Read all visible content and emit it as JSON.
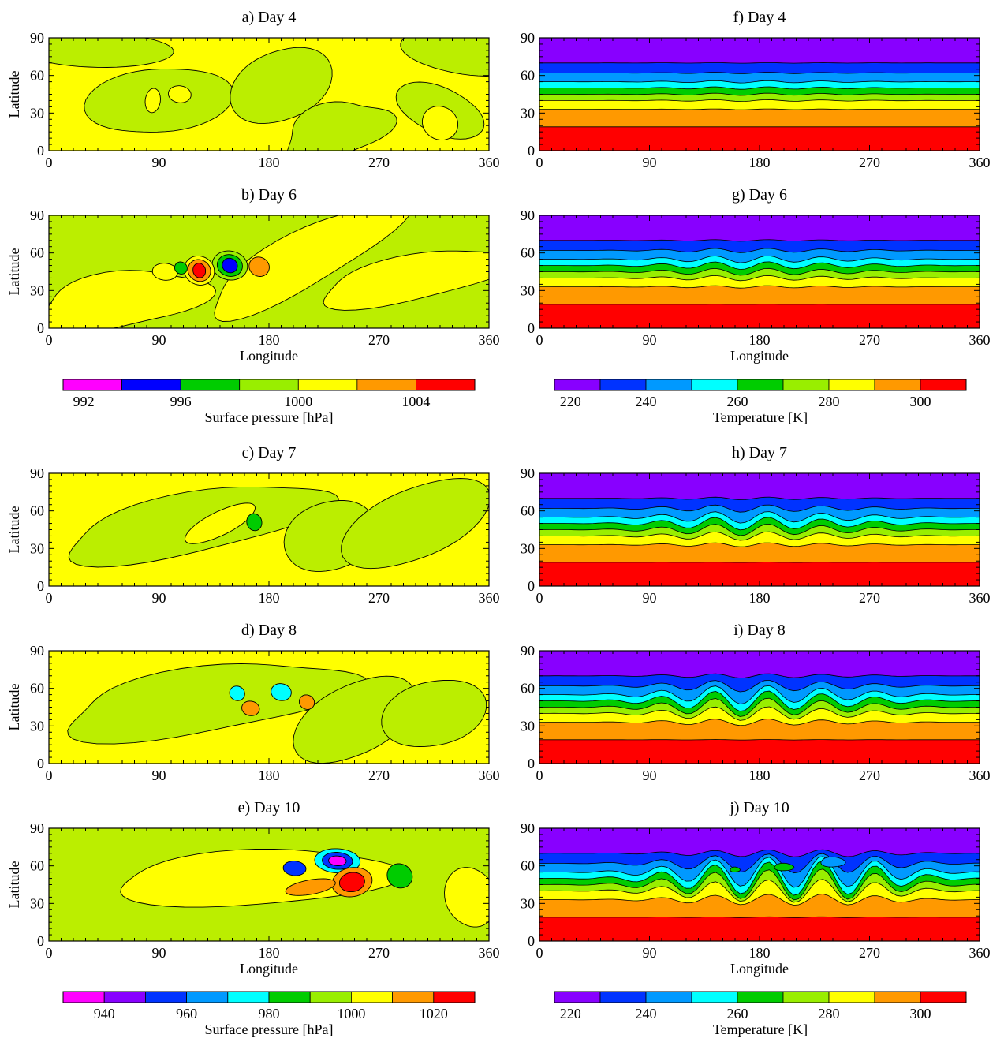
{
  "figure": {
    "panels": [
      {
        "id": "a",
        "title": "a) Day 4",
        "variable": "ps",
        "col": 0,
        "row": 0,
        "ylabel": "Latitude",
        "xlabel": ""
      },
      {
        "id": "b",
        "title": "b) Day 6",
        "variable": "ps",
        "col": 0,
        "row": 1,
        "ylabel": "Latitude",
        "xlabel": "Longitude"
      },
      {
        "id": "c",
        "title": "c) Day 7",
        "variable": "ps",
        "col": 0,
        "row": 2,
        "ylabel": "Latitude",
        "xlabel": ""
      },
      {
        "id": "d",
        "title": "d) Day 8",
        "variable": "ps",
        "col": 0,
        "row": 3,
        "ylabel": "Latitude",
        "xlabel": ""
      },
      {
        "id": "e",
        "title": "e) Day 10",
        "variable": "ps",
        "col": 0,
        "row": 4,
        "ylabel": "Latitude",
        "xlabel": "Longitude"
      },
      {
        "id": "f",
        "title": "f) Day 4",
        "variable": "t",
        "col": 1,
        "row": 0,
        "ylabel": "",
        "xlabel": ""
      },
      {
        "id": "g",
        "title": "g) Day 6",
        "variable": "t",
        "col": 1,
        "row": 1,
        "ylabel": "",
        "xlabel": "Longitude"
      },
      {
        "id": "h",
        "title": "h) Day 7",
        "variable": "t",
        "col": 1,
        "row": 2,
        "ylabel": "",
        "xlabel": ""
      },
      {
        "id": "i",
        "title": "i) Day 8",
        "variable": "t",
        "col": 1,
        "row": 3,
        "ylabel": "",
        "xlabel": ""
      },
      {
        "id": "j",
        "title": "j) Day 10",
        "variable": "t",
        "col": 1,
        "row": 4,
        "ylabel": "",
        "xlabel": "Longitude"
      }
    ],
    "colorbars": [
      {
        "id": "ps1",
        "label": "Surface pressure [hPa]",
        "colors": [
          "#ff00ff",
          "#0000ff",
          "#00cc00",
          "#99ee00",
          "#ffff00",
          "#ff9900",
          "#ff0000"
        ],
        "ticks": [
          "992",
          "996",
          "1000",
          "1004"
        ]
      },
      {
        "id": "t1",
        "label": "Temperature [K]",
        "colors": [
          "#8800ff",
          "#0033ff",
          "#0099ff",
          "#00ffff",
          "#00cc00",
          "#99ee00",
          "#ffff00",
          "#ff9900",
          "#ff0000"
        ],
        "ticks": [
          "220",
          "240",
          "260",
          "280",
          "300"
        ]
      },
      {
        "id": "ps2",
        "label": "Surface pressure [hPa]",
        "colors": [
          "#ff00ff",
          "#8800ff",
          "#0033ff",
          "#0099ff",
          "#00ffff",
          "#00cc00",
          "#99ee00",
          "#ffff00",
          "#ff9900",
          "#ff0000"
        ],
        "ticks": [
          "940",
          "960",
          "980",
          "1000",
          "1020"
        ]
      },
      {
        "id": "t2",
        "label": "Temperature [K]",
        "colors": [
          "#8800ff",
          "#0033ff",
          "#0099ff",
          "#00ffff",
          "#00cc00",
          "#99ee00",
          "#ffff00",
          "#ff9900",
          "#ff0000"
        ],
        "ticks": [
          "220",
          "240",
          "260",
          "280",
          "300"
        ]
      }
    ]
  },
  "chart_data": [
    {
      "type": "heatmap",
      "panel": "a",
      "title": "a) Day 4",
      "ylabel": "Latitude",
      "xlim": [
        0,
        360
      ],
      "ylim": [
        0,
        90
      ],
      "x_ticks": [
        0,
        90,
        180,
        270,
        360
      ],
      "y_ticks": [
        0,
        30,
        60,
        90
      ],
      "background_level": "1000",
      "centers": []
    },
    {
      "type": "heatmap",
      "panel": "b",
      "title": "b) Day 6",
      "xlabel": "Longitude",
      "ylabel": "Latitude",
      "xlim": [
        0,
        360
      ],
      "ylim": [
        0,
        90
      ],
      "x_ticks": [
        0,
        90,
        180,
        270,
        360
      ],
      "y_ticks": [
        0,
        30,
        60,
        90
      ],
      "centers": [
        {
          "lon": 148,
          "lat": 50,
          "color": "#0000ff"
        },
        {
          "lon": 123,
          "lat": 46,
          "color": "#ff0000"
        },
        {
          "lon": 172,
          "lat": 49,
          "color": "#ff9900"
        }
      ]
    },
    {
      "type": "heatmap",
      "panel": "c",
      "title": "c) Day 7",
      "ylabel": "Latitude",
      "xlim": [
        0,
        360
      ],
      "ylim": [
        0,
        90
      ],
      "x_ticks": [
        0,
        90,
        180,
        270,
        360
      ],
      "y_ticks": [
        0,
        30,
        60,
        90
      ],
      "centers": [
        {
          "lon": 168,
          "lat": 51,
          "color": "#00cc00"
        }
      ]
    },
    {
      "type": "heatmap",
      "panel": "d",
      "title": "d) Day 8",
      "ylabel": "Latitude",
      "xlim": [
        0,
        360
      ],
      "ylim": [
        0,
        90
      ],
      "x_ticks": [
        0,
        90,
        180,
        270,
        360
      ],
      "y_ticks": [
        0,
        30,
        60,
        90
      ],
      "centers": [
        {
          "lon": 154,
          "lat": 56,
          "color": "#00ffff"
        },
        {
          "lon": 190,
          "lat": 57,
          "color": "#00ffff"
        },
        {
          "lon": 165,
          "lat": 44,
          "color": "#ff9900"
        },
        {
          "lon": 211,
          "lat": 49,
          "color": "#ff9900"
        }
      ]
    },
    {
      "type": "heatmap",
      "panel": "e",
      "title": "e) Day 10",
      "xlabel": "Longitude",
      "ylabel": "Latitude",
      "xlim": [
        0,
        360
      ],
      "ylim": [
        0,
        90
      ],
      "x_ticks": [
        0,
        90,
        180,
        270,
        360
      ],
      "y_ticks": [
        0,
        30,
        60,
        90
      ],
      "centers": [
        {
          "lon": 236,
          "lat": 64,
          "color": "#ff00ff"
        },
        {
          "lon": 201,
          "lat": 58,
          "color": "#0033ff"
        },
        {
          "lon": 248,
          "lat": 47,
          "color": "#ff0000"
        },
        {
          "lon": 214,
          "lat": 43,
          "color": "#ff9900"
        },
        {
          "lon": 287,
          "lat": 52,
          "color": "#00cc00"
        }
      ]
    },
    {
      "type": "heatmap",
      "panel": "f",
      "title": "f) Day 4",
      "xlim": [
        0,
        360
      ],
      "ylim": [
        0,
        90
      ],
      "x_ticks": [
        0,
        90,
        180,
        270,
        360
      ],
      "y_ticks": [
        0,
        30,
        60,
        90
      ],
      "band_bottom_lats": [
        0,
        19,
        33,
        40,
        45,
        50,
        55,
        62,
        70
      ],
      "band_colors": [
        "#ff0000",
        "#ff9900",
        "#ffff00",
        "#99ee00",
        "#00cc00",
        "#00ffff",
        "#0099ff",
        "#0033ff",
        "#8800ff"
      ],
      "wave_amplitude_deg": 1
    },
    {
      "type": "heatmap",
      "panel": "g",
      "title": "g) Day 6",
      "xlabel": "Longitude",
      "xlim": [
        0,
        360
      ],
      "ylim": [
        0,
        90
      ],
      "x_ticks": [
        0,
        90,
        180,
        270,
        360
      ],
      "y_ticks": [
        0,
        30,
        60,
        90
      ],
      "band_bottom_lats": [
        0,
        19,
        33,
        40,
        45,
        50,
        55,
        62,
        70
      ],
      "band_colors": [
        "#ff0000",
        "#ff9900",
        "#ffff00",
        "#99ee00",
        "#00cc00",
        "#00ffff",
        "#0099ff",
        "#0033ff",
        "#8800ff"
      ],
      "wave_amplitude_deg": 3
    },
    {
      "type": "heatmap",
      "panel": "h",
      "title": "h) Day 7",
      "xlim": [
        0,
        360
      ],
      "ylim": [
        0,
        90
      ],
      "x_ticks": [
        0,
        90,
        180,
        270,
        360
      ],
      "y_ticks": [
        0,
        30,
        60,
        90
      ],
      "band_bottom_lats": [
        0,
        19,
        33,
        40,
        45,
        50,
        55,
        62,
        70
      ],
      "band_colors": [
        "#ff0000",
        "#ff9900",
        "#ffff00",
        "#99ee00",
        "#00cc00",
        "#00ffff",
        "#0099ff",
        "#0033ff",
        "#8800ff"
      ],
      "wave_amplitude_deg": 5
    },
    {
      "type": "heatmap",
      "panel": "i",
      "title": "i) Day 8",
      "xlim": [
        0,
        360
      ],
      "ylim": [
        0,
        90
      ],
      "x_ticks": [
        0,
        90,
        180,
        270,
        360
      ],
      "y_ticks": [
        0,
        30,
        60,
        90
      ],
      "band_bottom_lats": [
        0,
        19,
        33,
        40,
        45,
        50,
        55,
        62,
        70
      ],
      "band_colors": [
        "#ff0000",
        "#ff9900",
        "#ffff00",
        "#99ee00",
        "#00cc00",
        "#00ffff",
        "#0099ff",
        "#0033ff",
        "#8800ff"
      ],
      "wave_amplitude_deg": 8
    },
    {
      "type": "heatmap",
      "panel": "j",
      "title": "j) Day 10",
      "xlabel": "Longitude",
      "xlim": [
        0,
        360
      ],
      "ylim": [
        0,
        90
      ],
      "x_ticks": [
        0,
        90,
        180,
        270,
        360
      ],
      "y_ticks": [
        0,
        30,
        60,
        90
      ],
      "band_bottom_lats": [
        0,
        19,
        33,
        40,
        45,
        50,
        55,
        62,
        70
      ],
      "band_colors": [
        "#ff0000",
        "#ff9900",
        "#ffff00",
        "#99ee00",
        "#00cc00",
        "#00ffff",
        "#0099ff",
        "#0033ff",
        "#8800ff"
      ],
      "wave_amplitude_deg": 11
    }
  ]
}
